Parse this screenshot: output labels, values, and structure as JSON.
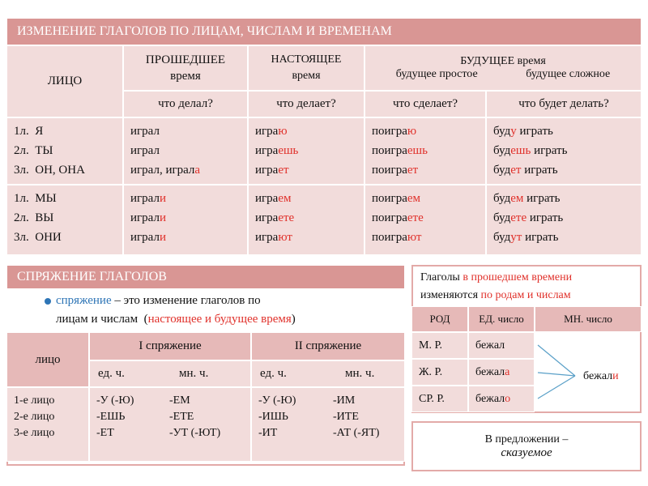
{
  "main_table": {
    "title": "ИЗМЕНЕНИЕ ГЛАГОЛОВ ПО ЛИЦАМ, ЧИСЛАМ И ВРЕМЕНАМ",
    "header": {
      "person": "ЛИЦО",
      "past": [
        [
          "ПРОШЕДШЕЕ"
        ],
        [
          "время"
        ]
      ],
      "present": [
        [
          "НАСТОЯЩЕЕ"
        ],
        [
          "время"
        ]
      ],
      "future": "БУДУЩЕЕ время",
      "future_simple": "будущее простое",
      "future_compound": "будущее сложное"
    },
    "questions": [
      "что делал?",
      "что делает?",
      "что сделает?",
      "что будет делать?"
    ],
    "rows": [
      [
        [
          [
            "1л.  Я"
          ],
          [
            "2л.  ТЫ"
          ],
          [
            "3л.  ОН, ОНА"
          ]
        ],
        [
          [
            "играл"
          ],
          [
            "играл"
          ],
          [
            "играл, играл",
            {
              "text": "а",
              "accent": "red"
            }
          ]
        ],
        [
          [
            "игра",
            {
              "text": "ю",
              "accent": "red"
            }
          ],
          [
            "игра",
            {
              "text": "ешь",
              "accent": "red"
            }
          ],
          [
            "игра",
            {
              "text": "ет",
              "accent": "red"
            }
          ]
        ],
        [
          [
            "поигра",
            {
              "text": "ю",
              "accent": "red"
            }
          ],
          [
            "поигра",
            {
              "text": "ешь",
              "accent": "red"
            }
          ],
          [
            "поигра",
            {
              "text": "ет",
              "accent": "red"
            }
          ]
        ],
        [
          [
            "буд",
            {
              "text": "у",
              "accent": "red"
            },
            " играть"
          ],
          [
            "буд",
            {
              "text": "ешь",
              "accent": "red"
            },
            " играть"
          ],
          [
            "буд",
            {
              "text": "ет",
              "accent": "red"
            },
            " играть"
          ]
        ]
      ],
      [
        [
          [
            "1л.  МЫ"
          ],
          [
            "2л.  ВЫ"
          ],
          [
            "3л.  ОНИ"
          ]
        ],
        [
          [
            "играл",
            {
              "text": "и",
              "accent": "red"
            }
          ],
          [
            "играл",
            {
              "text": "и",
              "accent": "red"
            }
          ],
          [
            "играл",
            {
              "text": "и",
              "accent": "red"
            }
          ]
        ],
        [
          [
            "игра",
            {
              "text": "ем",
              "accent": "red"
            }
          ],
          [
            "игра",
            {
              "text": "ете",
              "accent": "red"
            }
          ],
          [
            "игра",
            {
              "text": "ют",
              "accent": "red"
            }
          ]
        ],
        [
          [
            "поигра",
            {
              "text": "ем",
              "accent": "red"
            }
          ],
          [
            "поигра",
            {
              "text": "ете",
              "accent": "red"
            }
          ],
          [
            "поигра",
            {
              "text": "ют",
              "accent": "red"
            }
          ]
        ],
        [
          [
            "буд",
            {
              "text": "ем",
              "accent": "red"
            },
            " играть"
          ],
          [
            "буд",
            {
              "text": "ете",
              "accent": "red"
            },
            " играть"
          ],
          [
            "буд",
            {
              "text": "ут",
              "accent": "red"
            },
            " играть"
          ]
        ]
      ]
    ]
  },
  "conjugation": {
    "title": "СПРЯЖЕНИЕ  ГЛАГОЛОВ",
    "definition": [
      [
        {
          "text": "спряжение",
          "accent": "blue"
        },
        " – это изменение глаголов по"
      ],
      [
        "лицам и числам  (",
        {
          "text": "настоящее и будущее время",
          "accent": "red"
        },
        ")"
      ]
    ],
    "header": [
      "лицо",
      "I спряжение",
      "II спряжение"
    ],
    "subheader": [
      "ед. ч.",
      "мн. ч.",
      "ед. ч.",
      "мн. ч."
    ],
    "persons": [
      [
        "1-е лицо"
      ],
      [
        "2-е лицо"
      ],
      [
        "3-е лицо"
      ]
    ],
    "first_singular": [
      [
        "-У (-Ю)"
      ],
      [
        "-ЕШЬ"
      ],
      [
        "-ЕТ"
      ]
    ],
    "first_plural": [
      [
        "-ЕМ"
      ],
      [
        "-ЕТЕ"
      ],
      [
        "-УТ (-ЮТ)"
      ]
    ],
    "second_singular": [
      [
        "-У (-Ю)"
      ],
      [
        "-ИШЬ"
      ],
      [
        "-ИТ"
      ]
    ],
    "second_plural": [
      [
        "-ИМ"
      ],
      [
        "-ИТЕ"
      ],
      [
        "-АТ (-ЯТ)"
      ]
    ]
  },
  "past_tense": {
    "note": [
      [
        "Глаголы ",
        {
          "text": "в прошедшем времени",
          "accent": "red"
        }
      ],
      [
        "изменяются ",
        {
          "text": "по родам и числам",
          "accent": "red"
        }
      ]
    ],
    "header": [
      "РОД",
      "ЕД. число",
      "МН. число"
    ],
    "rows": [
      {
        "gender": "М. Р.",
        "singular": [
          [
            "бежал"
          ]
        ]
      },
      {
        "gender": "Ж. Р.",
        "singular": [
          [
            "бежал",
            {
              "text": "а",
              "accent": "red"
            }
          ]
        ]
      },
      {
        "gender": "СР. Р.",
        "singular": [
          [
            "бежал",
            {
              "text": "о",
              "accent": "red"
            }
          ]
        ]
      }
    ],
    "plural": [
      [
        "бежал",
        {
          "text": "и",
          "accent": "red"
        }
      ]
    ]
  },
  "sentence_role": {
    "line": "В предложении –",
    "role": "сказуемое"
  }
}
